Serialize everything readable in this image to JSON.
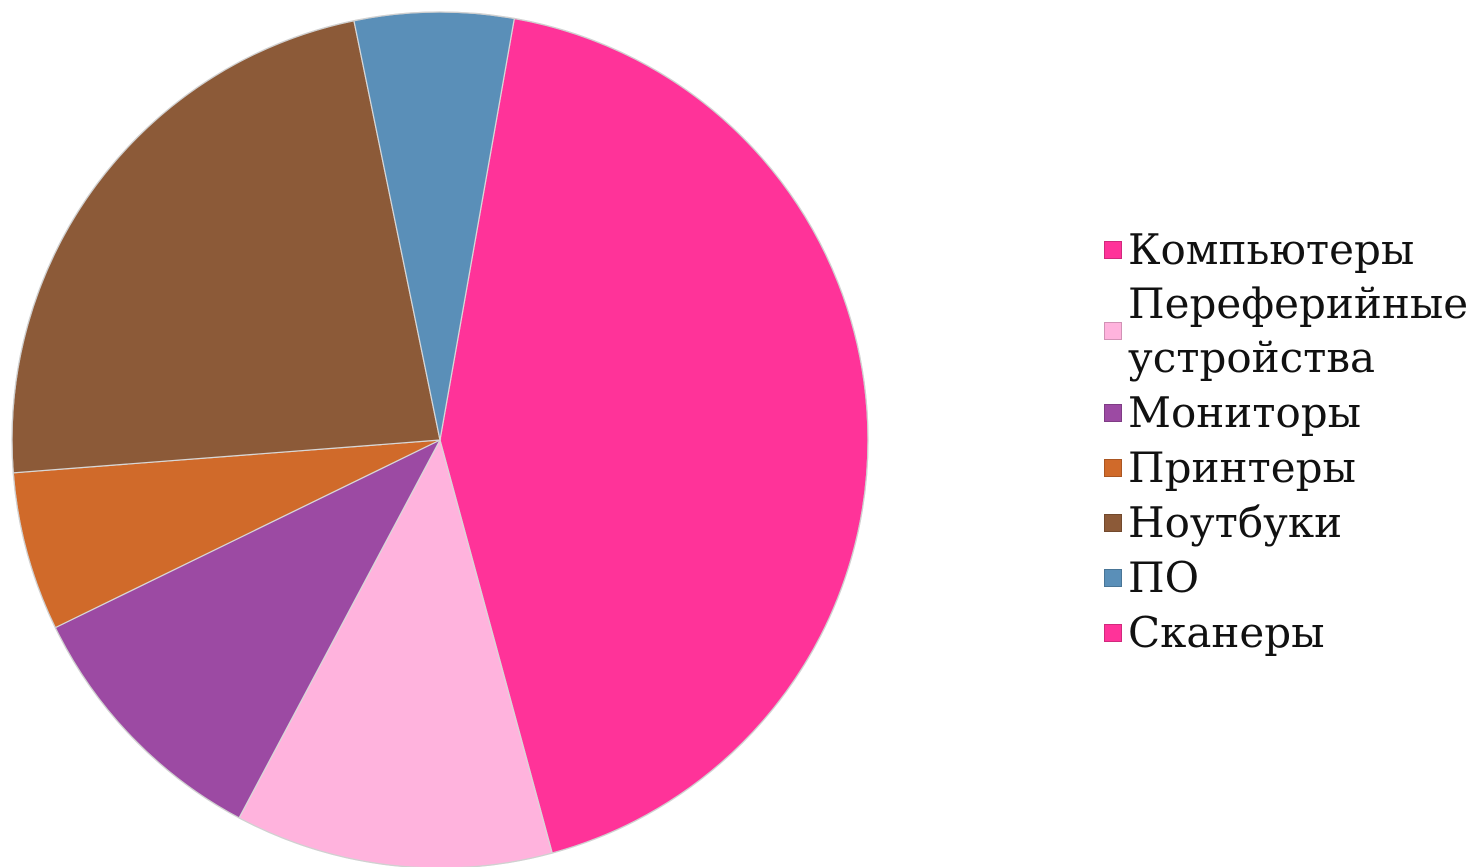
{
  "chart_data": {
    "type": "pie",
    "title": "",
    "legend_position": "right",
    "categories": [
      "Компьютеры",
      "Переферийные устройства",
      "Мониторы",
      "Принтеры",
      "Ноутбуки",
      "ПО",
      "Сканеры"
    ],
    "values": [
      0.43,
      0.12,
      0.1,
      0.06,
      0.23,
      0.06,
      0.0
    ],
    "colors": [
      "#ff3399",
      "#ffb3dd",
      "#9c4aa3",
      "#d06a2a",
      "#8c5a38",
      "#5a8fb8",
      "#ff3399"
    ]
  },
  "legend": {
    "items": [
      {
        "label": "Компьютеры",
        "color": "#ff3399"
      },
      {
        "label": "Переферийные устройства",
        "color": "#ffb3dd"
      },
      {
        "label": "Мониторы",
        "color": "#9c4aa3"
      },
      {
        "label": "Принтеры",
        "color": "#d06a2a"
      },
      {
        "label": "Ноутбуки",
        "color": "#8c5a38"
      },
      {
        "label": "ПО",
        "color": "#5a8fb8"
      },
      {
        "label": "Сканеры",
        "color": "#ff3399"
      }
    ]
  }
}
